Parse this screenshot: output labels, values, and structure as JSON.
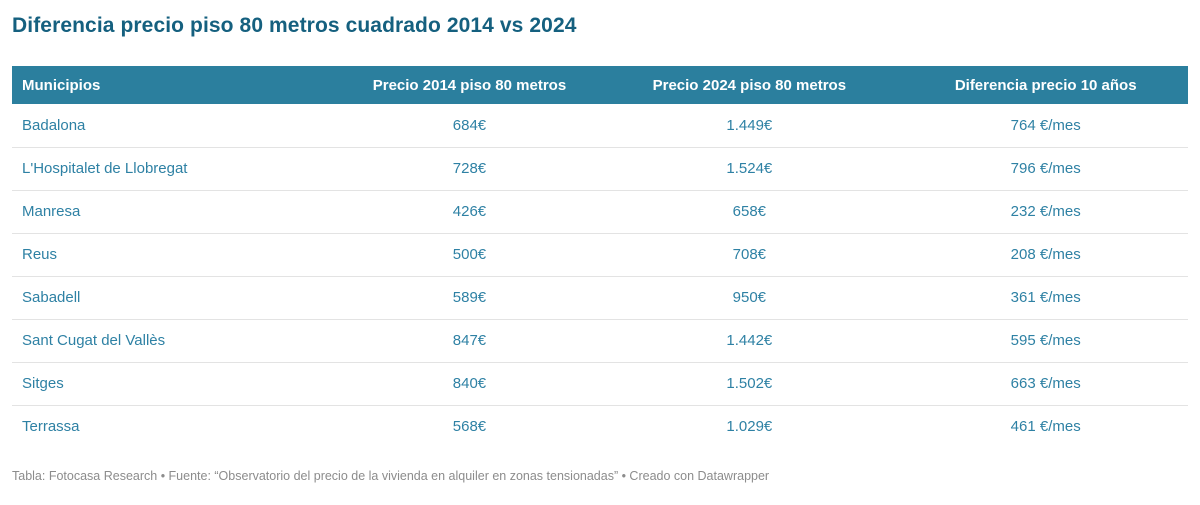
{
  "title": "Diferencia precio piso 80 metros cuadrado 2014 vs 2024",
  "chart_data": {
    "type": "table",
    "title": "Diferencia precio piso 80 metros cuadrado 2014 vs 2024",
    "columns": [
      "Municipios",
      "Precio 2014 piso 80 metros",
      "Precio 2024 piso 80 metros",
      "Diferencia precio 10 años"
    ],
    "rows": [
      [
        "Badalona",
        "684€",
        "1.449€",
        "764 €/mes"
      ],
      [
        "L'Hospitalet de Llobregat",
        "728€",
        "1.524€",
        "796 €/mes"
      ],
      [
        "Manresa",
        "426€",
        "658€",
        "232 €/mes"
      ],
      [
        "Reus",
        "500€",
        "708€",
        "208 €/mes"
      ],
      [
        "Sabadell",
        "589€",
        "950€",
        "361 €/mes"
      ],
      [
        "Sant Cugat del Vallès",
        "847€",
        "1.442€",
        "595 €/mes"
      ],
      [
        "Sitges",
        "840€",
        "1.502€",
        "663 €/mes"
      ],
      [
        "Terrassa",
        "568€",
        "1.029€",
        "461 €/mes"
      ]
    ],
    "numeric": {
      "precio_2014": [
        684,
        728,
        426,
        500,
        589,
        847,
        840,
        568
      ],
      "precio_2024": [
        1449,
        1524,
        658,
        708,
        950,
        1442,
        1502,
        1029
      ],
      "diferencia_eur_mes": [
        764,
        796,
        232,
        208,
        361,
        595,
        663,
        461
      ]
    }
  },
  "footer": {
    "text": "Tabla: Fotocasa Research • Fuente: “Observatorio del precio de la vivienda en alquiler en zonas tensionadas” • Creado con Datawrapper"
  },
  "colors": {
    "header_bg": "#2b7f9e",
    "title_text": "#15607f",
    "cell_text": "#2e81a4",
    "footer_text": "#8c8c8c",
    "row_border": "#e3e3e3"
  }
}
